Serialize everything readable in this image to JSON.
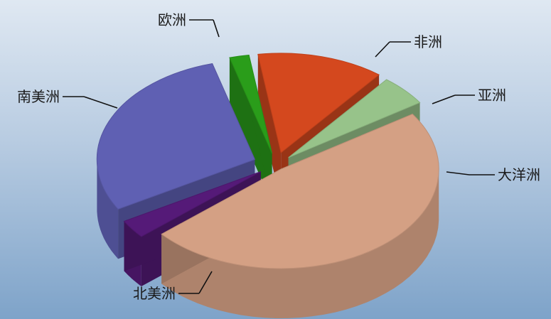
{
  "chart_data": {
    "type": "pie",
    "style": "3d-exploded",
    "title": "",
    "series": [
      {
        "labels": [
          "欧洲",
          "非洲",
          "亚洲",
          "大洋洲",
          "北美洲",
          "南美洲"
        ],
        "values": [
          29,
          2,
          13,
          5,
          48,
          3
        ],
        "colors": [
          "#5f60b3",
          "#2a9d1a",
          "#d4481e",
          "#97c38a",
          "#d4a084",
          "#551a78"
        ]
      }
    ]
  }
}
